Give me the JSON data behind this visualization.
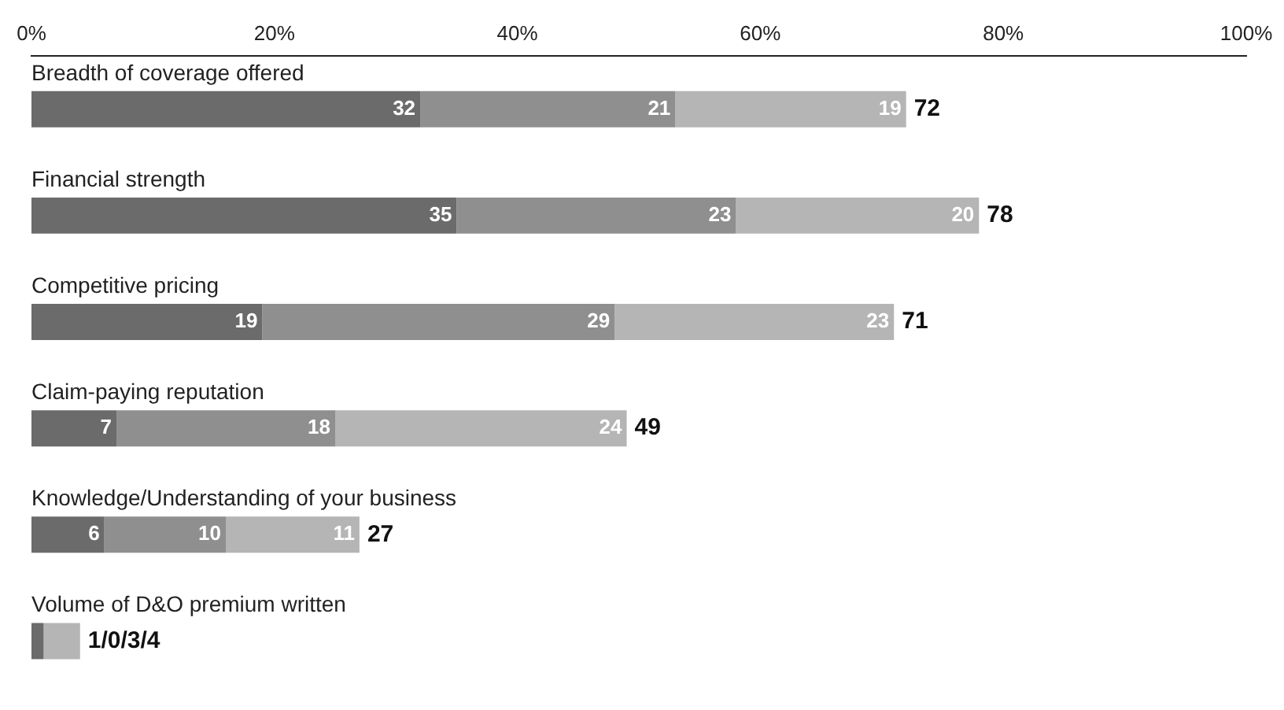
{
  "chart_data": {
    "type": "bar",
    "orientation": "horizontal",
    "stacked": true,
    "categories": [
      "Breadth of coverage offered",
      "Financial strength",
      "Competitive pricing",
      "Claim-paying reputation",
      "Knowledge/Understanding of your business",
      "Volume of D&O premium written"
    ],
    "series": [
      {
        "color": "#6b6b6b",
        "values": [
          32,
          35,
          19,
          7,
          6,
          1
        ],
        "value_labels": [
          "32",
          "35",
          "19",
          "7",
          "6",
          null
        ]
      },
      {
        "color": "#8f8f8f",
        "values": [
          21,
          23,
          29,
          18,
          10,
          0
        ],
        "value_labels": [
          "21",
          "23",
          "29",
          "18",
          "10",
          null
        ]
      },
      {
        "color": "#b5b5b5",
        "values": [
          19,
          20,
          23,
          24,
          11,
          3
        ],
        "value_labels": [
          "19",
          "20",
          "23",
          "24",
          "11",
          null
        ]
      }
    ],
    "totals": [
      "72",
      "78",
      "71",
      "49",
      "27",
      "1/0/3/4"
    ],
    "xlim": [
      0,
      100
    ],
    "xticks": [
      {
        "value": 0,
        "label": "0%"
      },
      {
        "value": 20,
        "label": "20%"
      },
      {
        "value": 40,
        "label": "40%"
      },
      {
        "value": 60,
        "label": "60%"
      },
      {
        "value": 80,
        "label": "80%"
      },
      {
        "value": 100,
        "label": "100%"
      }
    ],
    "grid": false,
    "legend": false
  }
}
